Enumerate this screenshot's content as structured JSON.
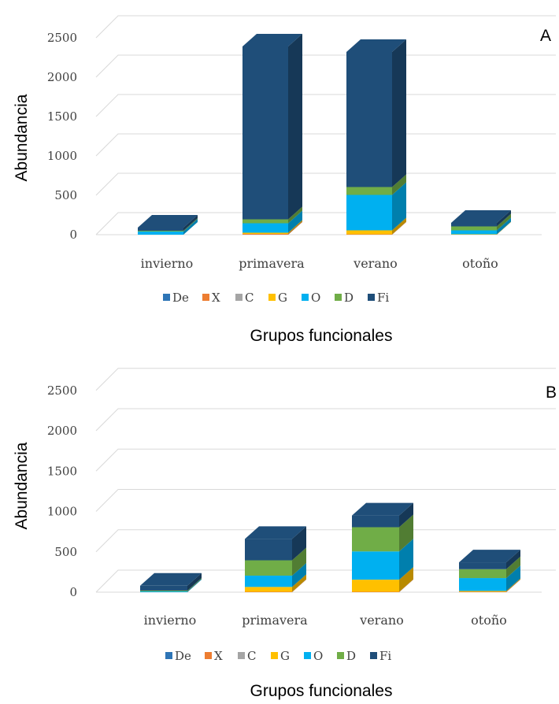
{
  "chart_data": [
    {
      "type": "bar",
      "stacked": true,
      "style": "3d",
      "panel_label": "A",
      "title": "",
      "ylabel": "Abundancia",
      "xlabel": "Grupos funcionales",
      "ylim": [
        0,
        2500
      ],
      "yticks": [
        0,
        500,
        1000,
        1500,
        2000,
        2500
      ],
      "grid": true,
      "legend_position": "bottom",
      "categories": [
        "invierno",
        "primavera",
        "verano",
        "otoño"
      ],
      "series": [
        {
          "name": "De",
          "color": "#2e75b6",
          "values": [
            0,
            0,
            0,
            0
          ]
        },
        {
          "name": "X",
          "color": "#ed7d31",
          "values": [
            0,
            10,
            5,
            0
          ]
        },
        {
          "name": "C",
          "color": "#a5a5a5",
          "values": [
            0,
            0,
            0,
            0
          ]
        },
        {
          "name": "G",
          "color": "#ffc000",
          "values": [
            0,
            15,
            50,
            5
          ]
        },
        {
          "name": "O",
          "color": "#00b0f0",
          "values": [
            40,
            120,
            450,
            50
          ]
        },
        {
          "name": "D",
          "color": "#70ad47",
          "values": [
            10,
            50,
            100,
            50
          ]
        },
        {
          "name": "Fi",
          "color": "#1f4e79",
          "values": [
            40,
            2195,
            1715,
            45
          ]
        }
      ]
    },
    {
      "type": "bar",
      "stacked": true,
      "style": "3d",
      "panel_label": "B",
      "title": "",
      "ylabel": "Abundancia",
      "xlabel": "Grupos funcionales",
      "ylim": [
        0,
        2500
      ],
      "yticks": [
        0,
        500,
        1000,
        1500,
        2000,
        2500
      ],
      "grid": true,
      "legend_position": "bottom",
      "categories": [
        "invierno",
        "primavera",
        "verano",
        "otoño"
      ],
      "series": [
        {
          "name": "De",
          "color": "#2e75b6",
          "values": [
            0,
            0,
            0,
            0
          ]
        },
        {
          "name": "X",
          "color": "#ed7d31",
          "values": [
            0,
            5,
            5,
            5
          ]
        },
        {
          "name": "C",
          "color": "#a5a5a5",
          "values": [
            0,
            0,
            0,
            0
          ]
        },
        {
          "name": "G",
          "color": "#ffc000",
          "values": [
            0,
            60,
            150,
            10
          ]
        },
        {
          "name": "O",
          "color": "#00b0f0",
          "values": [
            10,
            140,
            350,
            160
          ]
        },
        {
          "name": "D",
          "color": "#70ad47",
          "values": [
            10,
            190,
            300,
            110
          ]
        },
        {
          "name": "Fi",
          "color": "#1f4e79",
          "values": [
            60,
            265,
            145,
            85
          ]
        }
      ]
    }
  ]
}
